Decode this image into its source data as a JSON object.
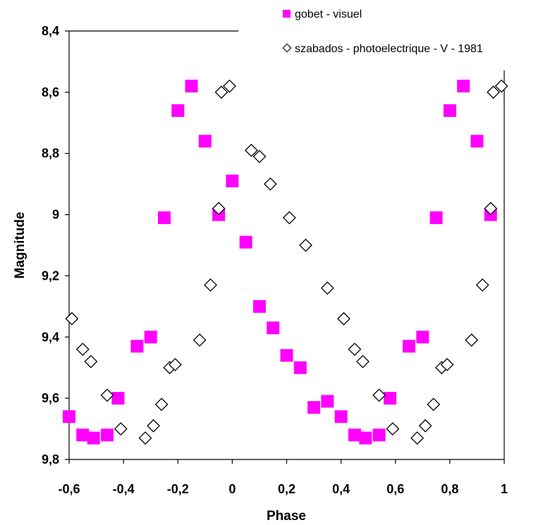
{
  "chart_data": {
    "type": "scatter",
    "xlabel": "Phase",
    "ylabel": "Magnitude",
    "xlim": [
      -0.6,
      1.0
    ],
    "ylim": [
      8.4,
      9.8
    ],
    "y_inverted": true,
    "x_ticks": [
      "-0,6",
      "-0,4",
      "-0,2",
      "0",
      "0,2",
      "0,4",
      "0,6",
      "0,8",
      "1"
    ],
    "y_ticks": [
      "8,4",
      "8,6",
      "8,8",
      "9",
      "9,2",
      "9,4",
      "9,6",
      "9,8"
    ],
    "x_tick_values": [
      -0.6,
      -0.4,
      -0.2,
      0,
      0.2,
      0.4,
      0.6,
      0.8,
      1.0
    ],
    "y_tick_values": [
      8.4,
      8.6,
      8.8,
      9.0,
      9.2,
      9.4,
      9.6,
      9.8
    ],
    "legend_position": "top-right",
    "series": [
      {
        "name": "gobet - visuel",
        "marker": "square",
        "color": "#ff00ff",
        "points": [
          [
            -0.6,
            9.66
          ],
          [
            -0.55,
            9.72
          ],
          [
            -0.51,
            9.73
          ],
          [
            -0.46,
            9.72
          ],
          [
            -0.42,
            9.6
          ],
          [
            -0.35,
            9.43
          ],
          [
            -0.3,
            9.4
          ],
          [
            -0.25,
            9.01
          ],
          [
            -0.2,
            8.66
          ],
          [
            -0.15,
            8.58
          ],
          [
            -0.1,
            8.76
          ],
          [
            -0.05,
            9.0
          ],
          [
            0.0,
            8.89
          ],
          [
            0.05,
            9.09
          ],
          [
            0.1,
            9.3
          ],
          [
            0.15,
            9.37
          ],
          [
            0.2,
            9.46
          ],
          [
            0.25,
            9.5
          ],
          [
            0.3,
            9.63
          ],
          [
            0.35,
            9.61
          ],
          [
            0.4,
            9.66
          ],
          [
            0.45,
            9.72
          ],
          [
            0.49,
            9.73
          ],
          [
            0.54,
            9.72
          ],
          [
            0.58,
            9.6
          ],
          [
            0.65,
            9.43
          ],
          [
            0.7,
            9.4
          ],
          [
            0.75,
            9.01
          ],
          [
            0.8,
            8.66
          ],
          [
            0.85,
            8.58
          ],
          [
            0.9,
            8.76
          ],
          [
            0.95,
            9.0
          ]
        ]
      },
      {
        "name": "szabados - photoelectrique - V - 1981",
        "marker": "diamond",
        "color": "#000000",
        "points": [
          [
            -0.59,
            9.34
          ],
          [
            -0.55,
            9.44
          ],
          [
            -0.52,
            9.48
          ],
          [
            -0.46,
            9.59
          ],
          [
            -0.41,
            9.7
          ],
          [
            -0.32,
            9.73
          ],
          [
            -0.29,
            9.69
          ],
          [
            -0.26,
            9.62
          ],
          [
            -0.23,
            9.5
          ],
          [
            -0.21,
            9.49
          ],
          [
            -0.12,
            9.41
          ],
          [
            -0.08,
            9.23
          ],
          [
            -0.05,
            8.98
          ],
          [
            -0.04,
            8.6
          ],
          [
            -0.01,
            8.58
          ],
          [
            0.07,
            8.79
          ],
          [
            0.1,
            8.81
          ],
          [
            0.14,
            8.9
          ],
          [
            0.21,
            9.01
          ],
          [
            0.27,
            9.1
          ],
          [
            0.35,
            9.24
          ],
          [
            0.41,
            9.34
          ],
          [
            0.45,
            9.44
          ],
          [
            0.48,
            9.48
          ],
          [
            0.54,
            9.59
          ],
          [
            0.59,
            9.7
          ],
          [
            0.68,
            9.73
          ],
          [
            0.71,
            9.69
          ],
          [
            0.74,
            9.62
          ],
          [
            0.77,
            9.5
          ],
          [
            0.79,
            9.49
          ],
          [
            0.88,
            9.41
          ],
          [
            0.92,
            9.23
          ],
          [
            0.95,
            8.98
          ],
          [
            0.96,
            8.6
          ],
          [
            0.99,
            8.58
          ]
        ]
      }
    ]
  }
}
